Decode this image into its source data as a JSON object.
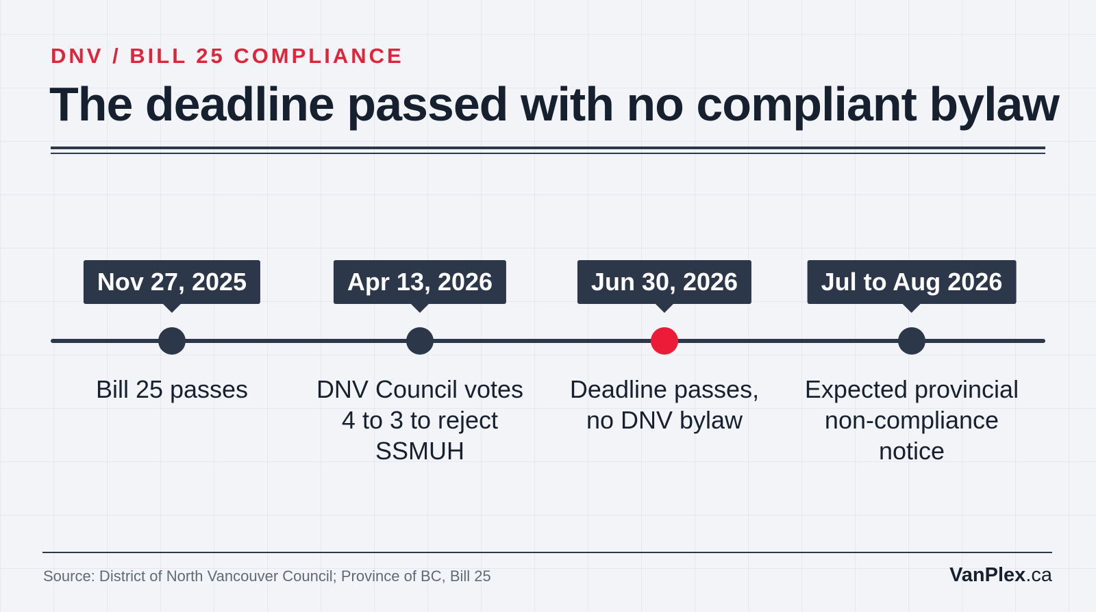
{
  "header": {
    "kicker": "DNV / BILL 25 COMPLIANCE",
    "title": "The deadline passed with no compliant bylaw"
  },
  "timeline": {
    "milestones": [
      {
        "date": "Nov 27, 2025",
        "label": "Bill 25 passes",
        "highlight": false
      },
      {
        "date": "Apr 13, 2026",
        "label": "DNV Council votes\n4 to 3 to reject\nSSMUH",
        "highlight": false
      },
      {
        "date": "Jun 30, 2026",
        "label": "Deadline passes,\nno DNV bylaw",
        "highlight": true
      },
      {
        "date": "Jul to Aug 2026",
        "label": "Expected provincial\nnon-compliance\nnotice",
        "highlight": false
      }
    ]
  },
  "footer": {
    "source": "Source: District of North Vancouver Council; Province of BC, Bill 25",
    "brand_main": "VanPlex",
    "brand_suffix": ".ca"
  },
  "colors": {
    "accent": "#e0243a",
    "highlight_dot": "#ec1c38",
    "navy": "#2c3849",
    "text": "#16202e"
  }
}
